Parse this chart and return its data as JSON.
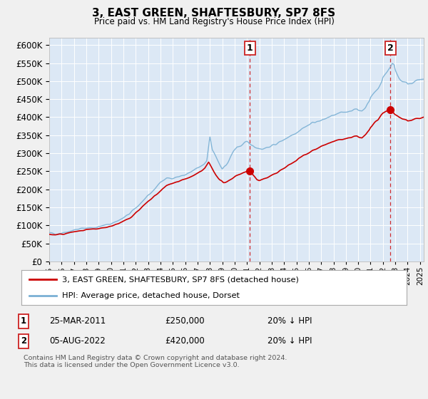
{
  "title": "3, EAST GREEN, SHAFTESBURY, SP7 8FS",
  "subtitle": "Price paid vs. HM Land Registry's House Price Index (HPI)",
  "background_color": "#f0f0f0",
  "plot_bg_color": "#dce8f5",
  "ylim": [
    0,
    620000
  ],
  "yticks": [
    0,
    50000,
    100000,
    150000,
    200000,
    250000,
    300000,
    350000,
    400000,
    450000,
    500000,
    550000,
    600000
  ],
  "xlim_start": 1995.0,
  "xlim_end": 2025.3,
  "grid_color": "#ffffff",
  "hpi_color": "#7ab0d4",
  "price_color": "#cc0000",
  "sale1_date": 2011.23,
  "sale1_price": 250000,
  "sale1_label": "1",
  "sale2_date": 2022.59,
  "sale2_price": 420000,
  "sale2_label": "2",
  "footer_line1": "Contains HM Land Registry data © Crown copyright and database right 2024.",
  "footer_line2": "This data is licensed under the Open Government Licence v3.0.",
  "legend_entries": [
    "3, EAST GREEN, SHAFTESBURY, SP7 8FS (detached house)",
    "HPI: Average price, detached house, Dorset"
  ],
  "table_rows": [
    {
      "num": "1",
      "date": "25-MAR-2011",
      "price": "£250,000",
      "note": "20% ↓ HPI"
    },
    {
      "num": "2",
      "date": "05-AUG-2022",
      "price": "£420,000",
      "note": "20% ↓ HPI"
    }
  ],
  "hpi_anchors": [
    [
      1995.0,
      78000
    ],
    [
      1995.5,
      77000
    ],
    [
      1996.0,
      79000
    ],
    [
      1996.5,
      83000
    ],
    [
      1997.0,
      87000
    ],
    [
      1997.5,
      90000
    ],
    [
      1998.0,
      93000
    ],
    [
      1998.5,
      93000
    ],
    [
      1999.0,
      96000
    ],
    [
      1999.5,
      100000
    ],
    [
      2000.0,
      105000
    ],
    [
      2000.5,
      112000
    ],
    [
      2001.0,
      120000
    ],
    [
      2001.5,
      132000
    ],
    [
      2002.0,
      148000
    ],
    [
      2002.5,
      165000
    ],
    [
      2003.0,
      180000
    ],
    [
      2003.5,
      200000
    ],
    [
      2004.0,
      220000
    ],
    [
      2004.5,
      230000
    ],
    [
      2005.0,
      232000
    ],
    [
      2005.5,
      235000
    ],
    [
      2006.0,
      240000
    ],
    [
      2006.5,
      248000
    ],
    [
      2007.0,
      258000
    ],
    [
      2007.5,
      268000
    ],
    [
      2007.75,
      280000
    ],
    [
      2008.0,
      348000
    ],
    [
      2008.2,
      310000
    ],
    [
      2008.5,
      290000
    ],
    [
      2008.75,
      270000
    ],
    [
      2009.0,
      255000
    ],
    [
      2009.3,
      265000
    ],
    [
      2009.6,
      285000
    ],
    [
      2009.9,
      305000
    ],
    [
      2010.2,
      318000
    ],
    [
      2010.5,
      320000
    ],
    [
      2010.8,
      328000
    ],
    [
      2011.0,
      330000
    ],
    [
      2011.3,
      325000
    ],
    [
      2011.6,
      318000
    ],
    [
      2011.9,
      315000
    ],
    [
      2012.2,
      312000
    ],
    [
      2012.5,
      315000
    ],
    [
      2012.8,
      318000
    ],
    [
      2013.0,
      320000
    ],
    [
      2013.3,
      325000
    ],
    [
      2013.6,
      330000
    ],
    [
      2014.0,
      338000
    ],
    [
      2014.3,
      345000
    ],
    [
      2014.6,
      350000
    ],
    [
      2015.0,
      358000
    ],
    [
      2015.3,
      365000
    ],
    [
      2015.6,
      372000
    ],
    [
      2016.0,
      378000
    ],
    [
      2016.3,
      385000
    ],
    [
      2016.6,
      388000
    ],
    [
      2017.0,
      390000
    ],
    [
      2017.3,
      395000
    ],
    [
      2017.6,
      400000
    ],
    [
      2018.0,
      405000
    ],
    [
      2018.3,
      408000
    ],
    [
      2018.6,
      412000
    ],
    [
      2019.0,
      415000
    ],
    [
      2019.3,
      418000
    ],
    [
      2019.6,
      420000
    ],
    [
      2019.9,
      422000
    ],
    [
      2020.0,
      420000
    ],
    [
      2020.3,
      418000
    ],
    [
      2020.6,
      428000
    ],
    [
      2020.9,
      445000
    ],
    [
      2021.0,
      455000
    ],
    [
      2021.3,
      468000
    ],
    [
      2021.6,
      480000
    ],
    [
      2021.9,
      498000
    ],
    [
      2022.0,
      510000
    ],
    [
      2022.3,
      525000
    ],
    [
      2022.6,
      540000
    ],
    [
      2022.75,
      550000
    ],
    [
      2022.9,
      545000
    ],
    [
      2023.0,
      530000
    ],
    [
      2023.3,
      510000
    ],
    [
      2023.6,
      498000
    ],
    [
      2023.9,
      495000
    ],
    [
      2024.0,
      490000
    ],
    [
      2024.3,
      492000
    ],
    [
      2024.6,
      500000
    ],
    [
      2025.0,
      505000
    ],
    [
      2025.3,
      505000
    ]
  ],
  "price_anchors": [
    [
      1995.0,
      75000
    ],
    [
      1995.5,
      73000
    ],
    [
      1996.0,
      75000
    ],
    [
      1996.5,
      78000
    ],
    [
      1997.0,
      82000
    ],
    [
      1997.5,
      84000
    ],
    [
      1998.0,
      87000
    ],
    [
      1998.5,
      88000
    ],
    [
      1999.0,
      90000
    ],
    [
      1999.5,
      93000
    ],
    [
      2000.0,
      98000
    ],
    [
      2000.5,
      104000
    ],
    [
      2001.0,
      110000
    ],
    [
      2001.5,
      120000
    ],
    [
      2002.0,
      135000
    ],
    [
      2002.5,
      150000
    ],
    [
      2003.0,
      165000
    ],
    [
      2003.5,
      180000
    ],
    [
      2004.0,
      195000
    ],
    [
      2004.5,
      210000
    ],
    [
      2005.0,
      218000
    ],
    [
      2005.5,
      222000
    ],
    [
      2006.0,
      228000
    ],
    [
      2006.5,
      235000
    ],
    [
      2007.0,
      243000
    ],
    [
      2007.3,
      250000
    ],
    [
      2007.6,
      258000
    ],
    [
      2007.9,
      275000
    ],
    [
      2008.2,
      258000
    ],
    [
      2008.5,
      238000
    ],
    [
      2008.8,
      225000
    ],
    [
      2009.1,
      218000
    ],
    [
      2009.4,
      222000
    ],
    [
      2009.7,
      228000
    ],
    [
      2010.0,
      235000
    ],
    [
      2010.3,
      240000
    ],
    [
      2010.6,
      245000
    ],
    [
      2010.9,
      248000
    ],
    [
      2011.0,
      249000
    ],
    [
      2011.23,
      250000
    ],
    [
      2011.5,
      238000
    ],
    [
      2011.8,
      228000
    ],
    [
      2012.0,
      225000
    ],
    [
      2012.3,
      228000
    ],
    [
      2012.6,
      232000
    ],
    [
      2013.0,
      238000
    ],
    [
      2013.3,
      244000
    ],
    [
      2013.6,
      250000
    ],
    [
      2014.0,
      258000
    ],
    [
      2014.3,
      265000
    ],
    [
      2014.6,
      272000
    ],
    [
      2015.0,
      280000
    ],
    [
      2015.3,
      288000
    ],
    [
      2015.6,
      295000
    ],
    [
      2016.0,
      302000
    ],
    [
      2016.3,
      308000
    ],
    [
      2016.6,
      312000
    ],
    [
      2017.0,
      318000
    ],
    [
      2017.3,
      322000
    ],
    [
      2017.6,
      328000
    ],
    [
      2018.0,
      332000
    ],
    [
      2018.3,
      335000
    ],
    [
      2018.6,
      338000
    ],
    [
      2019.0,
      340000
    ],
    [
      2019.3,
      342000
    ],
    [
      2019.6,
      345000
    ],
    [
      2019.9,
      347000
    ],
    [
      2020.0,
      345000
    ],
    [
      2020.3,
      342000
    ],
    [
      2020.6,
      352000
    ],
    [
      2020.9,
      365000
    ],
    [
      2021.0,
      372000
    ],
    [
      2021.3,
      382000
    ],
    [
      2021.6,
      392000
    ],
    [
      2021.9,
      408000
    ],
    [
      2022.0,
      412000
    ],
    [
      2022.3,
      416000
    ],
    [
      2022.59,
      420000
    ],
    [
      2022.8,
      415000
    ],
    [
      2023.0,
      408000
    ],
    [
      2023.3,
      400000
    ],
    [
      2023.6,
      395000
    ],
    [
      2023.9,
      393000
    ],
    [
      2024.0,
      390000
    ],
    [
      2024.3,
      392000
    ],
    [
      2024.6,
      396000
    ],
    [
      2025.0,
      398000
    ],
    [
      2025.3,
      400000
    ]
  ]
}
